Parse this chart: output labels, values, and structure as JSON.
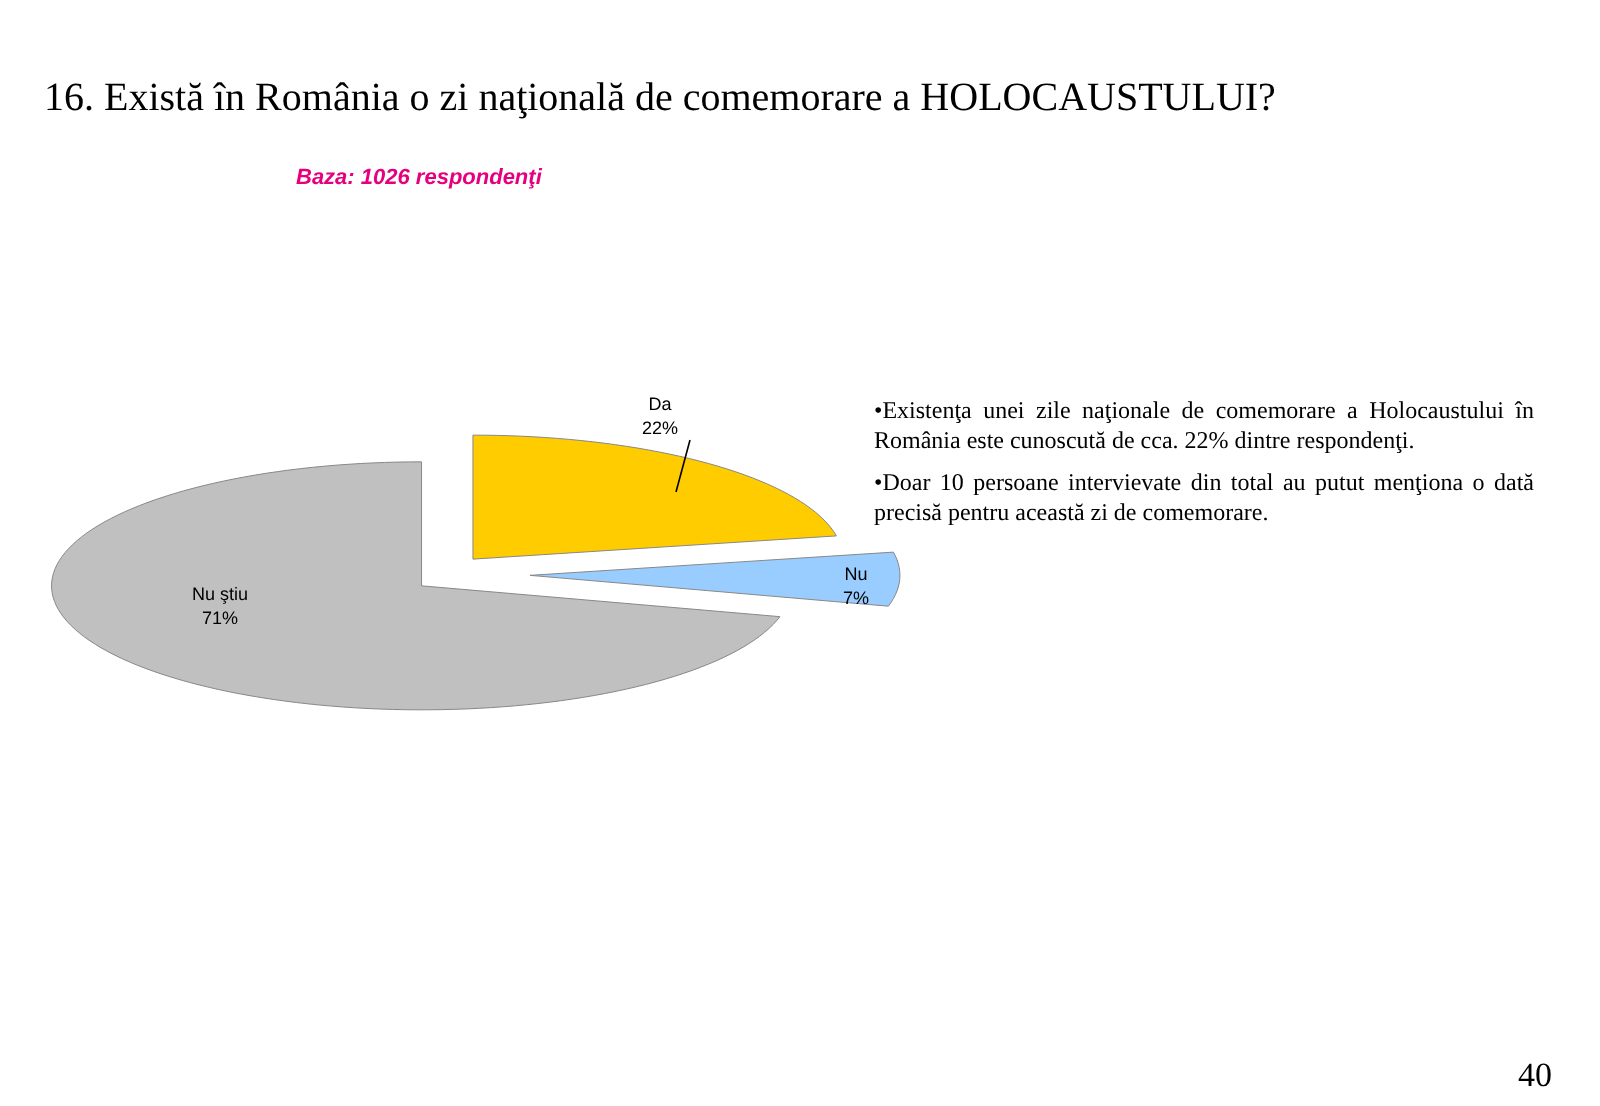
{
  "chart_data": {
    "type": "pie",
    "title": "16. Există în România o zi naţională de comemorare a HOLOCAUSTULUI?",
    "subtitle": "Baza: 1026 respondenţi",
    "categories": [
      "Da",
      "Nu",
      "Nu ştiu"
    ],
    "values": [
      22,
      7,
      71
    ],
    "value_labels": [
      "22%",
      "7%",
      "71%"
    ],
    "colors": [
      "#ffcc00",
      "#99ccff",
      "#c0c0c0"
    ],
    "annotations": [
      "•Existenţa unei zile naţionale de comemorare a Holocaustului în România este cunoscută de cca. 22% dintre respondenţi.",
      "•Doar 10 persoane intervievate din total au putut menţiona o dată precisă pentru această zi de comemorare.",
      "40"
    ]
  }
}
